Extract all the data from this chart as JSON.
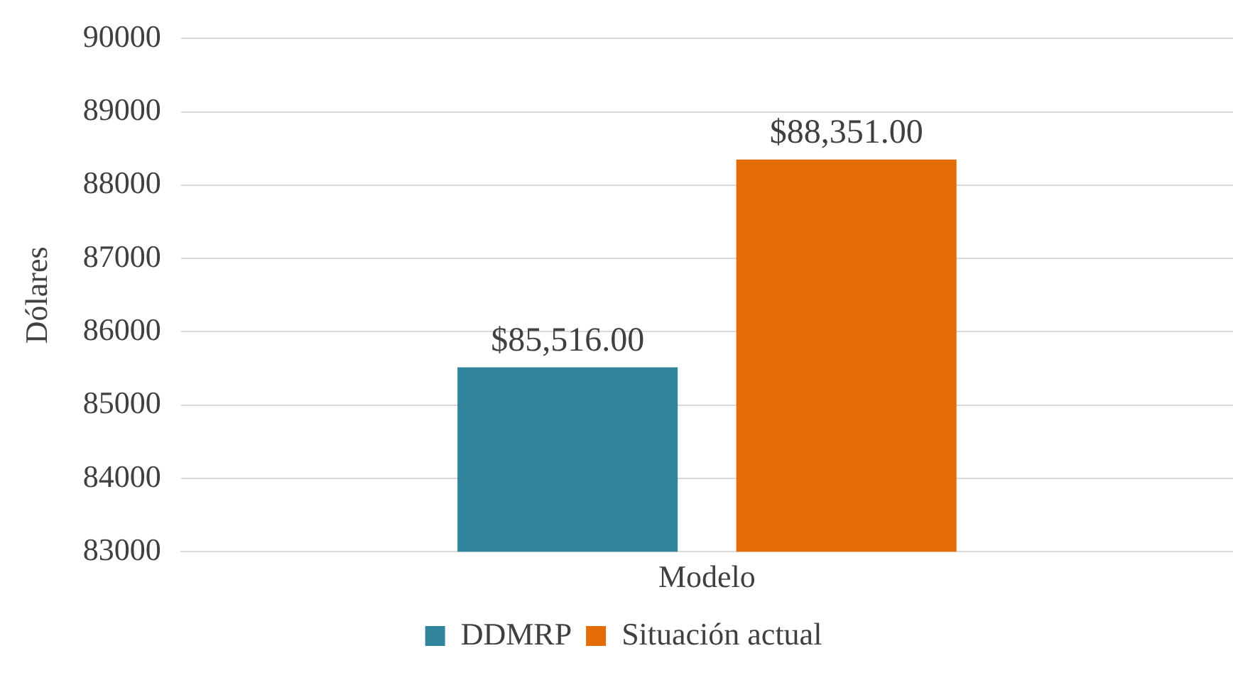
{
  "chart_data": {
    "type": "bar",
    "ylabel": "Dólares",
    "categories": [
      "Modelo"
    ],
    "series": [
      {
        "name": "DDMRP",
        "color": "#31849b",
        "values": [
          85516
        ],
        "value_labels": [
          "$85,516.00"
        ]
      },
      {
        "name": "Situación actual",
        "color": "#e36c09",
        "values": [
          88351
        ],
        "value_labels": [
          "$88,351.00"
        ]
      }
    ],
    "ylim": [
      83000,
      90000
    ],
    "yticks": [
      83000,
      84000,
      85000,
      86000,
      87000,
      88000,
      89000,
      90000
    ],
    "grid": "y",
    "legend": "bottom"
  }
}
